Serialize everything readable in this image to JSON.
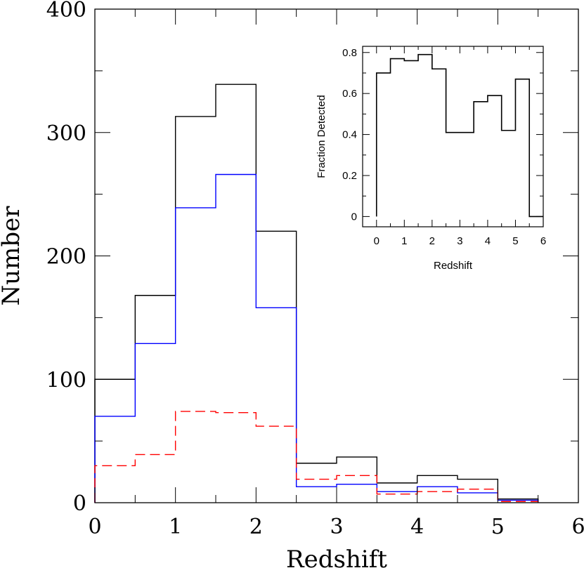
{
  "chart_data": [
    {
      "type": "histogram",
      "xlabel": "Redshift",
      "ylabel": "Number",
      "xlim": [
        0,
        6
      ],
      "ylim": [
        0,
        400
      ],
      "x_ticks": [
        "0",
        "1",
        "2",
        "3",
        "4",
        "5",
        "6"
      ],
      "y_ticks": [
        "0",
        "100",
        "200",
        "300",
        "400"
      ],
      "bin_edges": [
        0,
        0.5,
        1,
        1.5,
        2,
        2.5,
        3,
        3.5,
        4,
        4.5,
        5,
        5.5
      ],
      "series": [
        {
          "color": "#000000",
          "style": "solid",
          "values": [
            100,
            168,
            313,
            339,
            220,
            32,
            37,
            16,
            22,
            19,
            3
          ]
        },
        {
          "color": "#0000ff",
          "style": "solid",
          "values": [
            70,
            129,
            239,
            266,
            158,
            13,
            15,
            9,
            13,
            8,
            2
          ]
        },
        {
          "color": "#ff0000",
          "style": "dashed",
          "values": [
            30,
            39,
            74,
            73,
            62,
            19,
            22,
            7,
            9,
            11,
            1
          ]
        }
      ]
    },
    {
      "type": "histogram",
      "xlabel": "Redshift",
      "ylabel": "Fraction Detected",
      "xlim": [
        -0.5,
        6
      ],
      "ylim": [
        -0.05,
        0.83
      ],
      "x_ticks": [
        "0",
        "1",
        "2",
        "3",
        "4",
        "5",
        "6"
      ],
      "y_ticks": [
        "0",
        "0.2",
        "0.4",
        "0.6",
        "0.8"
      ],
      "bin_edges": [
        0,
        0.5,
        1,
        1.5,
        2,
        2.5,
        3,
        3.5,
        4,
        4.5,
        5,
        5.5,
        6
      ],
      "series": [
        {
          "color": "#000000",
          "style": "solid",
          "values": [
            0.7,
            0.77,
            0.76,
            0.79,
            0.72,
            0.41,
            0.41,
            0.56,
            0.59,
            0.42,
            0.67,
            0.0
          ]
        }
      ]
    }
  ]
}
